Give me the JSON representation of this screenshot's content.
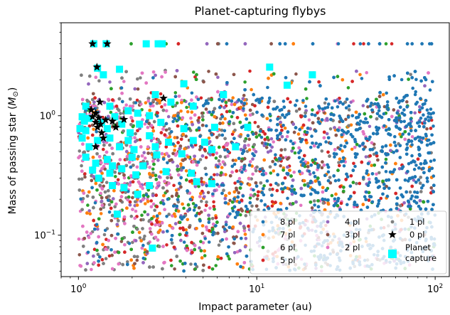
{
  "chart_data": {
    "type": "scatter",
    "title": "Planet-capturing flybys",
    "xlabel": "Impact parameter (au)",
    "ylabel_prefix": "Mass of passing star (",
    "ylabel_symbol": "M",
    "ylabel_subscript": "⊙",
    "ylabel_suffix": ")",
    "xscale": "log",
    "yscale": "log",
    "xlim": [
      0.8,
      120
    ],
    "ylim": [
      0.045,
      6.0
    ],
    "x_ticks": [
      {
        "value": 1,
        "base": "10",
        "exp": "0"
      },
      {
        "value": 10,
        "base": "10",
        "exp": "1"
      },
      {
        "value": 100,
        "base": "10",
        "exp": "2"
      }
    ],
    "y_ticks": [
      {
        "value": 0.1,
        "base": "10",
        "exp": "−1"
      },
      {
        "value": 1,
        "base": "10",
        "exp": "0"
      }
    ],
    "legend_position": "bottom-right",
    "series": [
      {
        "name": "8 pl",
        "marker": "dot",
        "color": "#1f77b4"
      },
      {
        "name": "7 pl",
        "marker": "dot",
        "color": "#ff7f0e"
      },
      {
        "name": "6 pl",
        "marker": "dot",
        "color": "#2ca02c"
      },
      {
        "name": "5 pl",
        "marker": "dot",
        "color": "#d62728"
      },
      {
        "name": "4 pl",
        "marker": "dot",
        "color": "#9467bd"
      },
      {
        "name": "3 pl",
        "marker": "dot",
        "color": "#8c564b"
      },
      {
        "name": "2 pl",
        "marker": "dot",
        "color": "#e377c2"
      },
      {
        "name": "1 pl",
        "marker": "dot",
        "color": "#7f7f7f"
      },
      {
        "name": "0 pl",
        "marker": "star",
        "color": "#000000"
      },
      {
        "name": "Planet capture",
        "label_lines": [
          "Planet",
          "capture"
        ],
        "marker": "square",
        "color": "#00ffff"
      }
    ],
    "zero_planet_points": [
      [
        1.2,
        4.0
      ],
      [
        1.45,
        4.0
      ],
      [
        1.27,
        2.55
      ],
      [
        3.0,
        1.4
      ],
      [
        1.32,
        1.3
      ],
      [
        1.18,
        1.12
      ],
      [
        1.25,
        1.05
      ],
      [
        1.2,
        0.98
      ],
      [
        1.3,
        0.96
      ],
      [
        1.42,
        0.92
      ],
      [
        1.55,
        0.9
      ],
      [
        1.8,
        0.93
      ],
      [
        1.25,
        0.88
      ],
      [
        1.33,
        0.85
      ],
      [
        1.28,
        0.8
      ],
      [
        1.62,
        0.8
      ],
      [
        1.35,
        0.72
      ],
      [
        1.38,
        0.65
      ],
      [
        1.25,
        0.55
      ]
    ],
    "planet_capture_points": [
      [
        1.22,
        4.0
      ],
      [
        1.43,
        4.0
      ],
      [
        2.4,
        4.0
      ],
      [
        2.8,
        4.0
      ],
      [
        2.95,
        4.0
      ],
      [
        1.28,
        2.5
      ],
      [
        1.38,
        2.2
      ],
      [
        1.7,
        2.45
      ],
      [
        11.8,
        2.55
      ],
      [
        20.5,
        2.2
      ],
      [
        3.9,
        1.85
      ],
      [
        14.8,
        1.8
      ],
      [
        2.7,
        1.5
      ],
      [
        6.5,
        1.5
      ],
      [
        3.3,
        1.3
      ],
      [
        4.4,
        1.2
      ],
      [
        1.1,
        1.2
      ],
      [
        1.5,
        1.2
      ],
      [
        1.9,
        1.1
      ],
      [
        2.15,
        1.05
      ],
      [
        2.5,
        1.0
      ],
      [
        1.05,
        0.98
      ],
      [
        1.15,
        0.95
      ],
      [
        1.6,
        0.98
      ],
      [
        1.08,
        0.9
      ],
      [
        1.35,
        0.88
      ],
      [
        1.75,
        0.85
      ],
      [
        2.2,
        0.85
      ],
      [
        2.9,
        0.88
      ],
      [
        1.02,
        0.78
      ],
      [
        1.1,
        0.75
      ],
      [
        1.45,
        0.78
      ],
      [
        1.95,
        0.72
      ],
      [
        3.9,
        0.78
      ],
      [
        5.8,
        0.8
      ],
      [
        8.9,
        0.8
      ],
      [
        1.05,
        0.65
      ],
      [
        1.28,
        0.62
      ],
      [
        1.5,
        0.65
      ],
      [
        1.9,
        0.62
      ],
      [
        2.5,
        0.68
      ],
      [
        3.2,
        0.6
      ],
      [
        4.4,
        0.62
      ],
      [
        5.1,
        0.6
      ],
      [
        1.15,
        0.55
      ],
      [
        1.7,
        0.55
      ],
      [
        2.05,
        0.52
      ],
      [
        2.7,
        0.55
      ],
      [
        5.6,
        0.52
      ],
      [
        7.6,
        0.55
      ],
      [
        1.1,
        0.45
      ],
      [
        1.45,
        0.43
      ],
      [
        2.0,
        0.45
      ],
      [
        2.75,
        0.47
      ],
      [
        3.8,
        0.48
      ],
      [
        1.25,
        0.4
      ],
      [
        1.55,
        0.38
      ],
      [
        2.3,
        0.38
      ],
      [
        1.2,
        0.35
      ],
      [
        1.5,
        0.33
      ],
      [
        1.75,
        0.36
      ],
      [
        2.1,
        0.32
      ],
      [
        3.1,
        0.34
      ],
      [
        4.3,
        0.33
      ],
      [
        1.3,
        0.3
      ],
      [
        1.55,
        0.26
      ],
      [
        1.8,
        0.25
      ],
      [
        2.5,
        0.26
      ],
      [
        4.6,
        0.28
      ],
      [
        5.6,
        0.27
      ],
      [
        2.15,
        0.22
      ],
      [
        1.65,
        0.15
      ],
      [
        2.6,
        0.078
      ]
    ]
  }
}
